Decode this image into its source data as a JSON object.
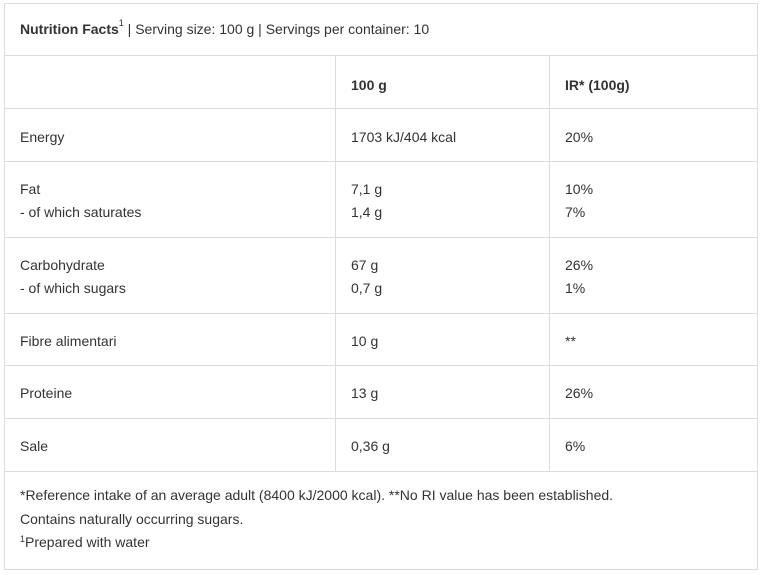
{
  "title": {
    "label": "Nutrition Facts",
    "sup": "1",
    "rest": " | Serving size: 100 g | Servings per container: 10"
  },
  "header": {
    "col1": "",
    "col2": "100 g",
    "col3": "IR* (100g)"
  },
  "rows": [
    {
      "n1": "Energy",
      "v1": "1703 kJ/404 kcal",
      "r1": "20%"
    },
    {
      "n1": "Fat",
      "n2": "- of which saturates",
      "v1": "7,1 g",
      "v2": "1,4 g",
      "r1": "10%",
      "r2": "7%"
    },
    {
      "n1": "Carbohydrate",
      "n2": "- of which sugars",
      "v1": "67 g",
      "v2": "0,7 g",
      "r1": "26%",
      "r2": "1%"
    },
    {
      "n1": "Fibre alimentari",
      "v1": "10 g",
      "r1": "**"
    },
    {
      "n1": "Proteine",
      "v1": "13 g",
      "r1": "26%"
    },
    {
      "n1": "Sale",
      "v1": "0,36 g",
      "r1": "6%"
    }
  ],
  "footer": {
    "line1": "*Reference intake of an average adult (8400 kJ/2000 kcal). **No RI value has been established.",
    "line2": "Contains naturally occurring sugars.",
    "line3_sup": "1",
    "line3": "Prepared with water"
  }
}
